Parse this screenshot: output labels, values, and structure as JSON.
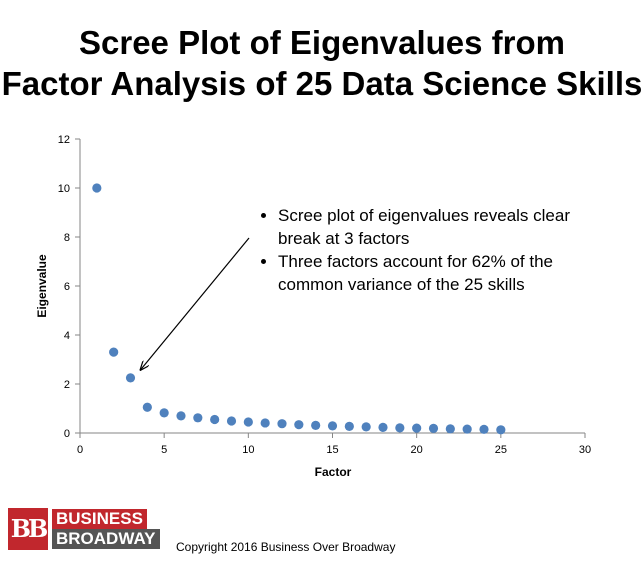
{
  "title_lines": [
    "Scree Plot of Eigenvalues from",
    "Factor Analysis of 25 Data Science Skills"
  ],
  "annotation": {
    "bullets": [
      "Scree plot of eigenvalues reveals clear break at 3 factors",
      "Three factors account for 62% of the common variance of the 25 skills"
    ]
  },
  "logo": {
    "mark": "BB",
    "line1": "BUSINESS",
    "line2": "BROADWAY"
  },
  "copyright": "Copyright 2016 Business Over Broadway",
  "chart_data": {
    "type": "scatter",
    "title": "Scree Plot of Eigenvalues from Factor Analysis of 25 Data Science Skills",
    "xlabel": "Factor",
    "ylabel": "Eigenvalue",
    "xlim": [
      0,
      30
    ],
    "ylim": [
      0,
      12
    ],
    "xticks": [
      0,
      5,
      10,
      15,
      20,
      25,
      30
    ],
    "yticks": [
      0,
      2,
      4,
      6,
      8,
      10,
      12
    ],
    "grid": false,
    "marker_color": "#4f81bd",
    "series": [
      {
        "x": [
          1,
          2,
          3,
          4,
          5,
          6,
          7,
          8,
          9,
          10,
          11,
          12,
          13,
          14,
          15,
          16,
          17,
          18,
          19,
          20,
          21,
          22,
          23,
          24,
          25
        ],
        "values": [
          10.0,
          3.3,
          2.25,
          1.05,
          0.82,
          0.7,
          0.62,
          0.55,
          0.49,
          0.45,
          0.41,
          0.38,
          0.34,
          0.31,
          0.29,
          0.27,
          0.25,
          0.23,
          0.21,
          0.2,
          0.19,
          0.17,
          0.16,
          0.15,
          0.13
        ]
      }
    ],
    "annotation_arrow": {
      "from_factor": 3,
      "from_eigenvalue": 2.25
    }
  }
}
